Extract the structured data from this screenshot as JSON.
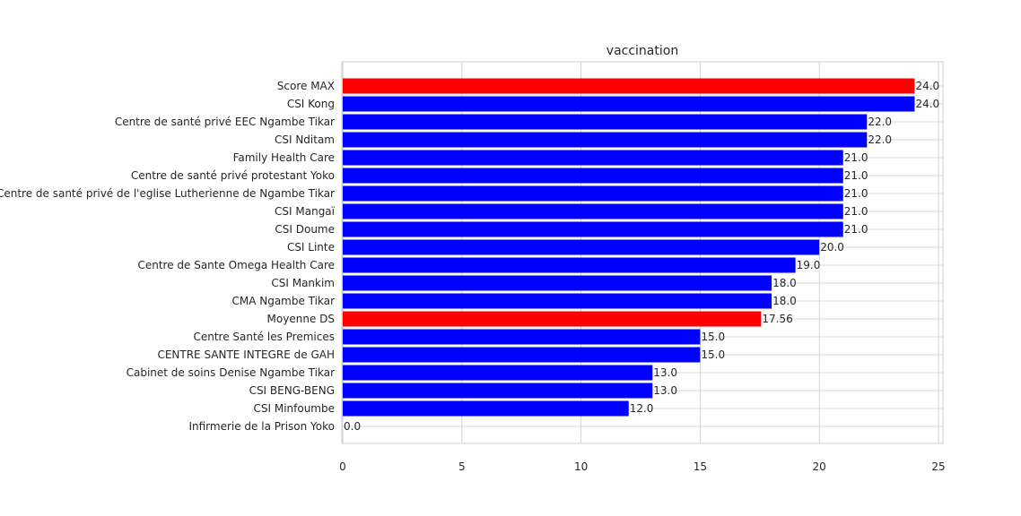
{
  "chart_data": {
    "type": "bar",
    "orientation": "horizontal",
    "title": "vaccination",
    "xlabel": "",
    "ylabel": "",
    "xlim": [
      0,
      25
    ],
    "xticks": [
      0,
      5,
      10,
      15,
      20,
      25
    ],
    "xtick_labels": [
      "0",
      "5",
      "10",
      "15",
      "20",
      "25"
    ],
    "grid": true,
    "highlight_color": "#ff0000",
    "bar_color": "#0000ff",
    "categories": [
      "Score MAX",
      "CSI Kong",
      "Centre de santé privé EEC Ngambe Tikar",
      "CSI Nditam",
      "Family Health Care",
      "Centre de santé privé protestant Yoko",
      "Centre de santé privé  de l'eglise Lutherienne de Ngambe Tikar",
      "CSI Mangaï",
      "CSI Doume",
      "CSI Linte",
      "Centre de Sante Omega Health  Care",
      "CSI Mankim",
      "CMA Ngambe Tikar",
      "Moyenne DS",
      "Centre Santé les Premices",
      "CENTRE SANTE INTEGRE  de GAH",
      "Cabinet de soins Denise Ngambe Tikar",
      "CSI BENG-BENG",
      "CSI Minfoumbe",
      "Infirmerie de la Prison Yoko"
    ],
    "values": [
      24.0,
      24.0,
      22.0,
      22.0,
      21.0,
      21.0,
      21.0,
      21.0,
      21.0,
      20.0,
      19.0,
      18.0,
      18.0,
      17.56,
      15.0,
      15.0,
      13.0,
      13.0,
      12.0,
      0.0
    ],
    "value_labels": [
      "24.0",
      "24.0",
      "22.0",
      "22.0",
      "21.0",
      "21.0",
      "21.0",
      "21.0",
      "21.0",
      "20.0",
      "19.0",
      "18.0",
      "18.0",
      "17.56",
      "15.0",
      "15.0",
      "13.0",
      "13.0",
      "12.0",
      "0.0"
    ],
    "highlighted": [
      true,
      false,
      false,
      false,
      false,
      false,
      false,
      false,
      false,
      false,
      false,
      false,
      false,
      true,
      false,
      false,
      false,
      false,
      false,
      false
    ]
  }
}
